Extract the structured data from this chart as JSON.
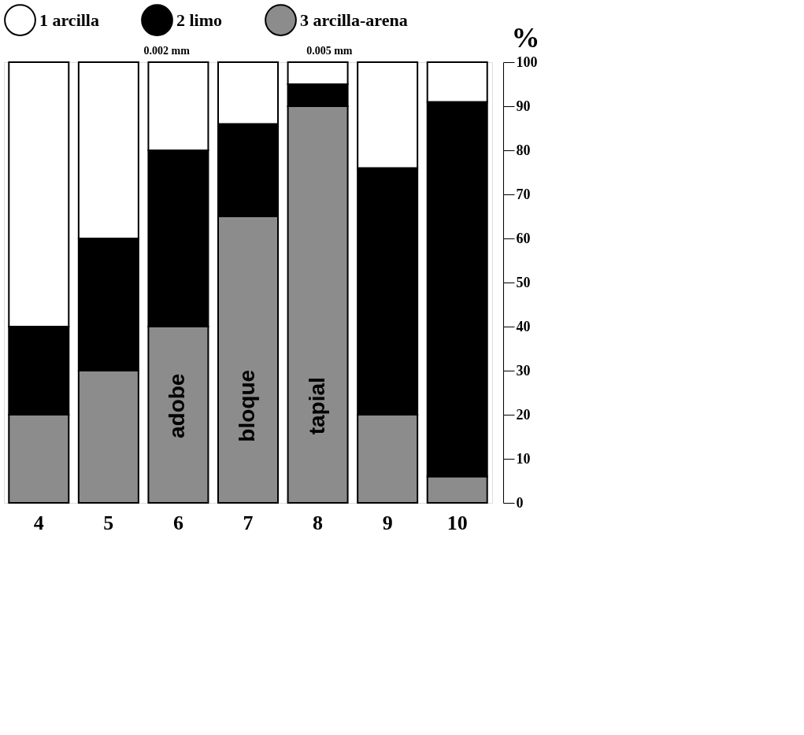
{
  "chart_data": {
    "type": "bar",
    "stacked": true,
    "ylabel": "%",
    "categories": [
      "4",
      "5",
      "6",
      "7",
      "8",
      "9",
      "10"
    ],
    "series": [
      {
        "name": "3 arcilla-arena",
        "color": "#8c8c8c",
        "values": [
          20,
          30,
          40,
          65,
          90,
          20,
          6
        ]
      },
      {
        "name": "2 limo",
        "color": "#000000",
        "values": [
          20,
          30,
          40,
          21,
          5,
          56,
          85
        ]
      },
      {
        "name": "1 arcilla",
        "color": "#ffffff",
        "values": [
          60,
          40,
          20,
          14,
          5,
          24,
          9
        ]
      }
    ],
    "ylim": [
      0,
      100
    ],
    "yticks": [
      0,
      10,
      20,
      30,
      40,
      50,
      60,
      70,
      80,
      90,
      100
    ],
    "legend": "top",
    "annotations": [
      "0.002 mm",
      "0.005 mm",
      "adobe",
      "bloque",
      "tapial"
    ]
  }
}
